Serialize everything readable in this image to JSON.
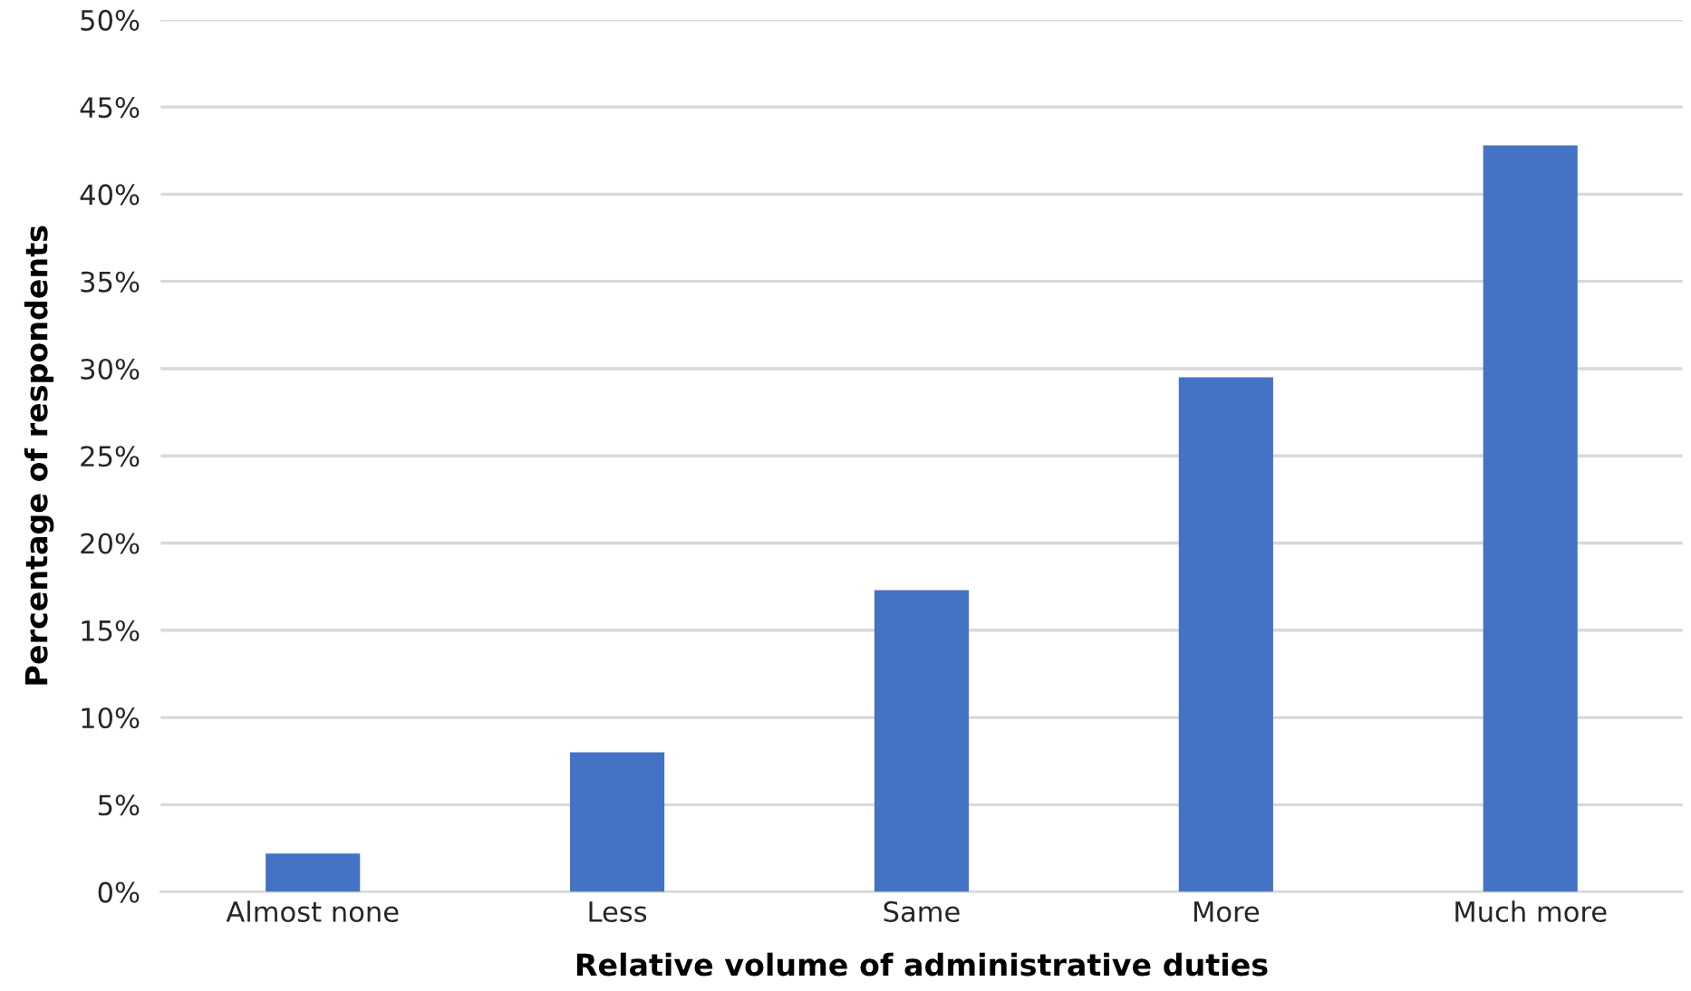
{
  "chart_data": {
    "type": "bar",
    "xlabel": "Relative volume of administrative duties",
    "ylabel": "Percentage of respondents",
    "categories": [
      "Almost none",
      "Less",
      "Same",
      "More",
      "Much more"
    ],
    "values": [
      2.2,
      8.0,
      17.3,
      29.5,
      42.8
    ],
    "color": "#4472c4",
    "ylim": [
      0,
      50
    ],
    "yticks": [
      {
        "value": 0,
        "label": "0%"
      },
      {
        "value": 5,
        "label": "5%"
      },
      {
        "value": 10,
        "label": "10%"
      },
      {
        "value": 15,
        "label": "15%"
      },
      {
        "value": 20,
        "label": "20%"
      },
      {
        "value": 25,
        "label": "25%"
      },
      {
        "value": 30,
        "label": "30%"
      },
      {
        "value": 35,
        "label": "35%"
      },
      {
        "value": 40,
        "label": "40%"
      },
      {
        "value": 45,
        "label": "45%"
      },
      {
        "value": 50,
        "label": "50%"
      }
    ],
    "grid": "y"
  }
}
